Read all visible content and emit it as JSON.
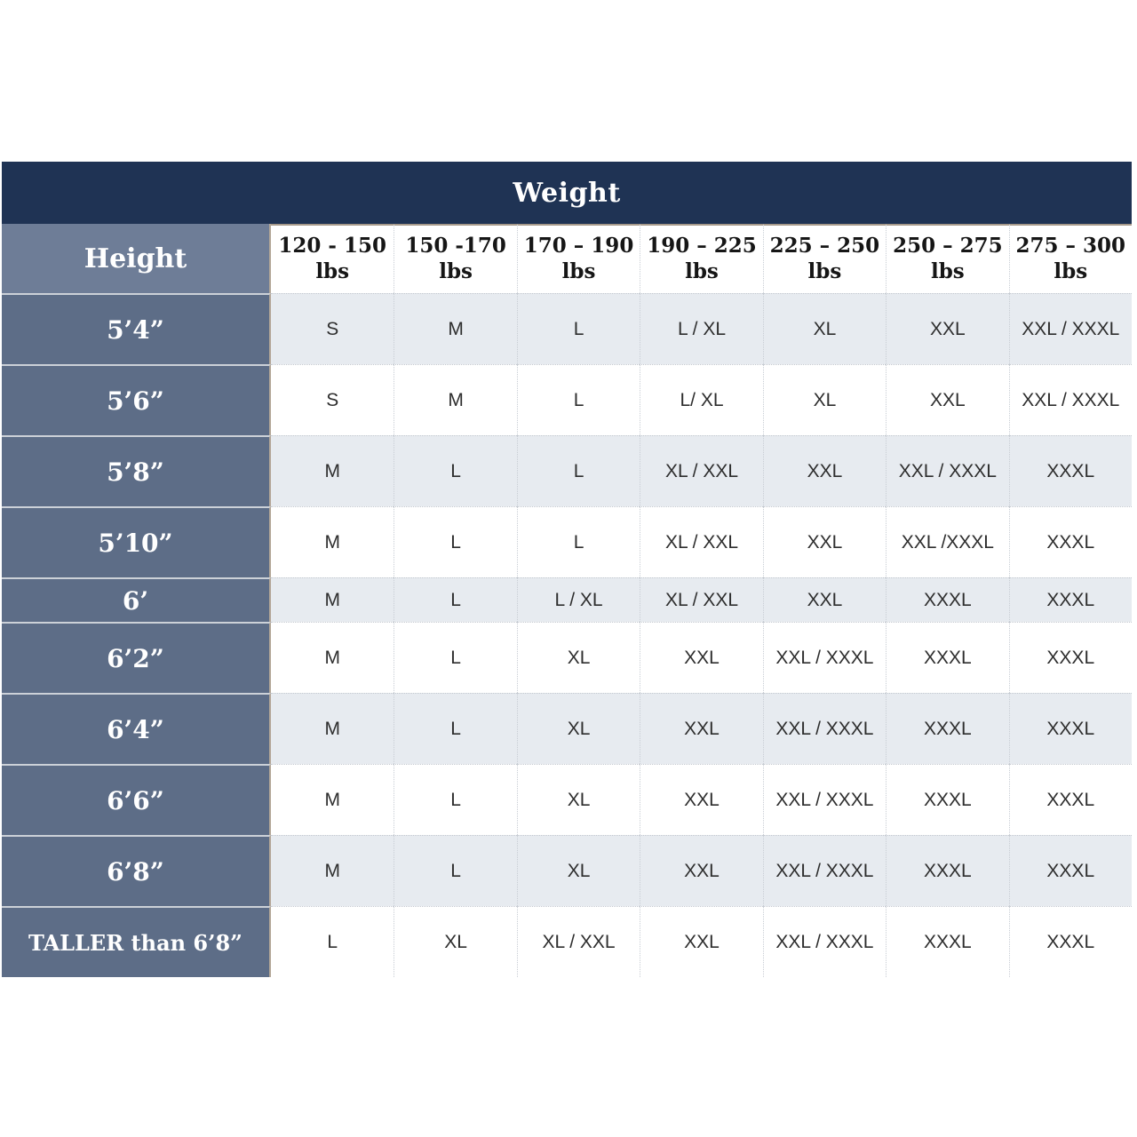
{
  "chart_data": {
    "type": "table",
    "title": "Weight",
    "corner_label": "Height",
    "columns": [
      {
        "range": "120 - 150",
        "unit": "lbs"
      },
      {
        "range": "150 -170",
        "unit": "lbs"
      },
      {
        "range": "170 – 190",
        "unit": "lbs"
      },
      {
        "range": "190 – 225",
        "unit": "lbs"
      },
      {
        "range": "225 – 250",
        "unit": "lbs"
      },
      {
        "range": "250 – 275",
        "unit": "lbs"
      },
      {
        "range": "275 – 300",
        "unit": "lbs"
      }
    ],
    "rows": [
      {
        "height": "5’4”",
        "sizes": [
          "S",
          "M",
          "L",
          "L / XL",
          "XL",
          "XXL",
          "XXL / XXXL"
        ]
      },
      {
        "height": "5’6”",
        "sizes": [
          "S",
          "M",
          "L",
          "L/ XL",
          "XL",
          "XXL",
          "XXL / XXXL"
        ]
      },
      {
        "height": "5’8”",
        "sizes": [
          "M",
          "L",
          "L",
          "XL / XXL",
          "XXL",
          "XXL / XXXL",
          "XXXL"
        ]
      },
      {
        "height": "5’10”",
        "sizes": [
          "M",
          "L",
          "L",
          "XL / XXL",
          "XXL",
          "XXL /XXXL",
          "XXXL"
        ]
      },
      {
        "height": "6’",
        "sizes": [
          "M",
          "L",
          "L / XL",
          "XL / XXL",
          "XXL",
          "XXXL",
          "XXXL"
        ]
      },
      {
        "height": "6’2”",
        "sizes": [
          "M",
          "L",
          "XL",
          "XXL",
          "XXL / XXXL",
          "XXXL",
          "XXXL"
        ]
      },
      {
        "height": "6’4”",
        "sizes": [
          "M",
          "L",
          "XL",
          "XXL",
          "XXL / XXXL",
          "XXXL",
          "XXXL"
        ]
      },
      {
        "height": "6’6”",
        "sizes": [
          "M",
          "L",
          "XL",
          "XXL",
          "XXL / XXXL",
          "XXXL",
          "XXXL"
        ]
      },
      {
        "height": "6’8”",
        "sizes": [
          "M",
          "L",
          "XL",
          "XXL",
          "XXL / XXXL",
          "XXXL",
          "XXXL"
        ]
      },
      {
        "height": "TALLER than 6’8”",
        "sizes": [
          "L",
          "XL",
          "XL / XXL",
          "XXL",
          "XXL / XXXL",
          "XXXL",
          "XXXL"
        ]
      }
    ],
    "layout": {
      "legend_position": "none",
      "grid": "dotted-separators",
      "alternating_rows": true
    }
  },
  "colors": {
    "title_bar_navy": "#1f3354",
    "height_header_bg": "#6e7d97",
    "height_cell_bg": "#5d6d87",
    "row_alt_bg": "#e7ebf0",
    "row_bg": "#ffffff",
    "header_text": "#161616",
    "data_text": "#2e2e2e",
    "tan_border": "#b3a697"
  }
}
